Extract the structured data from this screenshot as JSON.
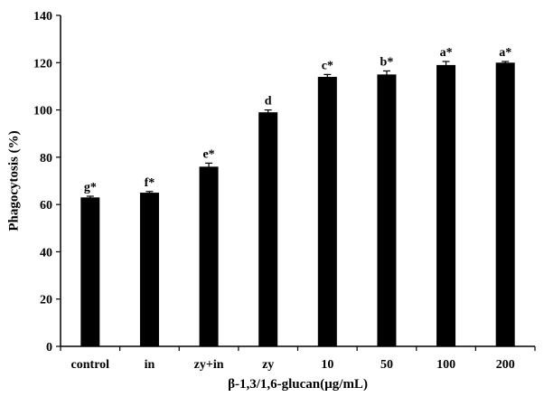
{
  "chart_data": {
    "type": "bar",
    "title": "",
    "xlabel": "β-1,3/1,6-glucan(µg/mL)",
    "ylabel": "Phagocytosis (%)",
    "ylim": [
      0,
      140
    ],
    "yticks": [
      "0",
      "20",
      "40",
      "60",
      "80",
      "100",
      "120",
      "140"
    ],
    "categories": [
      "control",
      "in",
      "zy+in",
      "zy",
      "10",
      "50",
      "100",
      "200"
    ],
    "values": [
      63,
      65,
      76,
      99,
      114,
      115,
      119,
      120
    ],
    "errors": [
      0.5,
      0.5,
      1.5,
      1.0,
      1.0,
      1.5,
      1.5,
      0.5
    ],
    "significance": [
      "g*",
      "f*",
      "e*",
      "d",
      "c*",
      "b*",
      "a*",
      "a*"
    ],
    "colors": {
      "bar": "#000000",
      "axis": "#000000",
      "background": "#ffffff"
    },
    "grid": false,
    "legend": "none"
  }
}
